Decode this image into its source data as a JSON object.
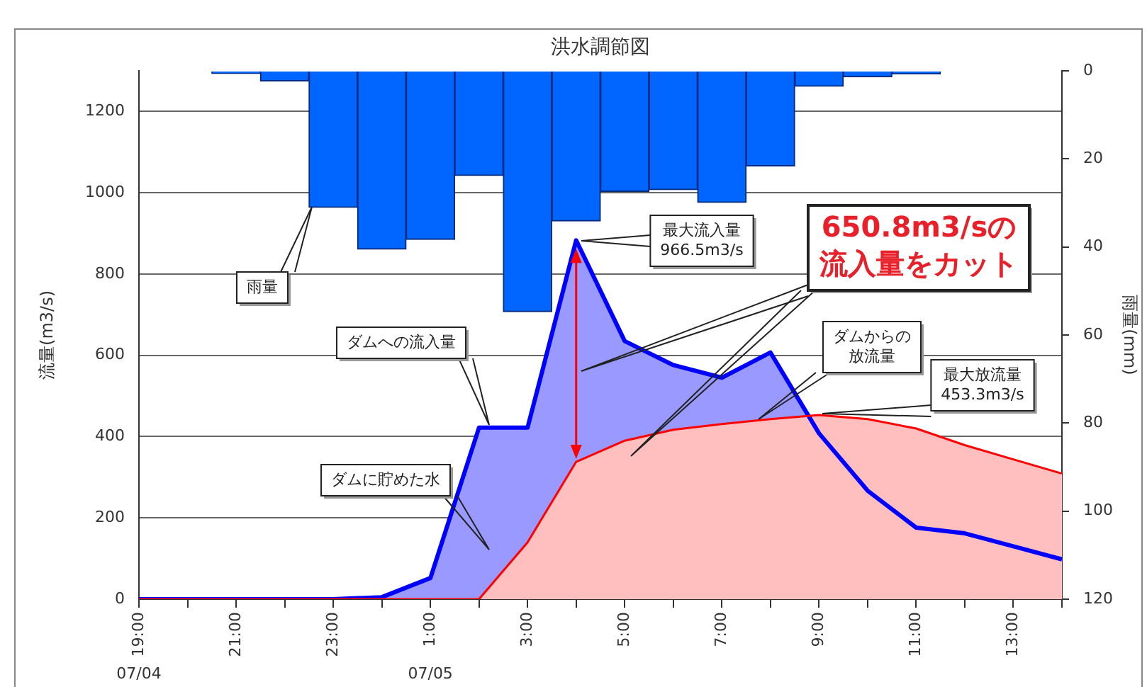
{
  "chart_data": {
    "type": "area",
    "title": "洪水調節図",
    "ylabel": "流量(m3/s)",
    "y2label": "雨量(mm)",
    "categories": [
      "19:00",
      null,
      "21:00",
      null,
      "23:00",
      null,
      "1:00",
      null,
      "3:00",
      null,
      "5:00",
      null,
      "7:00",
      null,
      "9:00",
      null,
      "11:00",
      null,
      "13:00",
      null
    ],
    "ylim": [
      0,
      1300
    ],
    "yticks": [
      0,
      200,
      400,
      600,
      800,
      1000,
      1200
    ],
    "y2lim": [
      120,
      0
    ],
    "y2ticks": [
      0,
      20,
      40,
      60,
      80,
      100,
      120
    ],
    "grid": "y",
    "legend": false,
    "series": [
      {
        "type": "bar",
        "axis": "y2",
        "color": "#0066ff",
        "values": [
          null,
          null,
          0.6,
          2.3,
          31,
          40.5,
          38.3,
          23.8,
          54.7,
          34.1,
          27.4,
          27,
          29.9,
          21.6,
          3.5,
          1.4,
          0.7,
          null,
          null,
          null
        ]
      },
      {
        "color": "#0000ff",
        "values": [
          0,
          0,
          0,
          0,
          0,
          5,
          52,
          422,
          422,
          883,
          635,
          576,
          545,
          607,
          408,
          267,
          176,
          162,
          130,
          98
        ]
      },
      {
        "color": "#ff0000",
        "values": [
          0,
          0,
          0,
          0,
          0,
          0,
          0,
          0,
          140,
          338,
          390,
          417,
          431,
          443,
          453,
          443,
          420,
          379,
          344,
          309
        ]
      }
    ],
    "annotations": [
      "雨量",
      "ダムへの流入量",
      "ダムに貯めた水",
      "最大流入量\n966.5m3/s",
      "650.8m3/sの流入量をカット",
      "ダムからの放流量",
      "最大放流量\n453.3m3/s",
      "07/04",
      "07/05"
    ]
  }
}
